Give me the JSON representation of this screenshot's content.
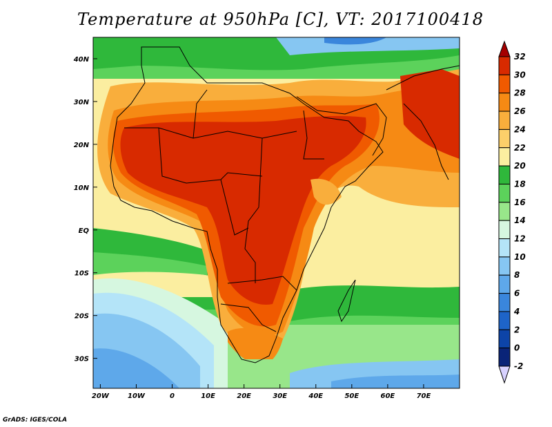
{
  "title": "Temperature at 950hPa [C], VT: 2017100418",
  "credit": "GrADS: IGES/COLA",
  "map": {
    "lon_ticks": [
      "20W",
      "10W",
      "0",
      "10E",
      "20E",
      "30E",
      "40E",
      "50E",
      "60E",
      "70E"
    ],
    "lat_ticks": [
      "40N",
      "30N",
      "20N",
      "10N",
      "EQ",
      "10S",
      "20S",
      "30S"
    ],
    "lon_range": [
      -22,
      80
    ],
    "lat_range": [
      -37,
      45
    ]
  },
  "colorbar": {
    "labels": [
      "32",
      "30",
      "28",
      "26",
      "24",
      "22",
      "20",
      "18",
      "16",
      "14",
      "12",
      "10",
      "8",
      "6",
      "4",
      "2",
      "0",
      "-2"
    ],
    "colors": [
      "#a50000",
      "#d82a00",
      "#f05a00",
      "#f68a14",
      "#f9ae3c",
      "#fccf6a",
      "#fbeea0",
      "#2fb83b",
      "#5cd25b",
      "#98e68a",
      "#d6f7e0",
      "#b4e4f8",
      "#86c6f2",
      "#5ea8ea",
      "#3a86dc",
      "#1e64c8",
      "#0d44a8",
      "#0a2478",
      "#d8d2ff"
    ]
  }
}
